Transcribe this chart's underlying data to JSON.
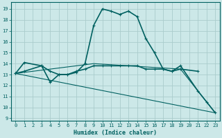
{
  "xlabel": "Humidex (Indice chaleur)",
  "background_color": "#cce8e8",
  "grid_color": "#aacccc",
  "line_color": "#006060",
  "xlim": [
    -0.5,
    23.5
  ],
  "ylim": [
    8.8,
    19.6
  ],
  "yticks": [
    9,
    10,
    11,
    12,
    13,
    14,
    15,
    16,
    17,
    18,
    19
  ],
  "xticks": [
    0,
    1,
    2,
    3,
    4,
    5,
    6,
    7,
    8,
    9,
    10,
    11,
    12,
    13,
    14,
    15,
    16,
    17,
    18,
    19,
    20,
    21,
    22,
    23
  ],
  "series": [
    {
      "x": [
        0,
        1,
        3,
        4,
        5,
        6,
        7,
        8,
        9,
        10,
        11,
        12,
        13,
        14,
        15,
        16,
        17,
        18,
        19,
        21,
        22,
        23
      ],
      "y": [
        13.1,
        14.1,
        13.8,
        12.3,
        13.0,
        13.0,
        13.2,
        14.0,
        17.5,
        19.0,
        18.8,
        18.5,
        18.8,
        18.3,
        16.3,
        15.0,
        13.5,
        13.3,
        13.8,
        11.5,
        10.5,
        9.5
      ]
    },
    {
      "x": [
        0,
        1,
        3,
        4,
        5,
        6,
        7,
        8,
        9,
        10,
        11,
        12,
        13,
        14,
        15,
        16,
        17,
        18,
        19,
        21
      ],
      "y": [
        13.1,
        13.3,
        13.8,
        13.3,
        13.0,
        13.0,
        13.3,
        13.5,
        13.8,
        13.8,
        13.8,
        13.8,
        13.8,
        13.8,
        13.5,
        13.5,
        13.5,
        13.3,
        13.5,
        13.3
      ]
    },
    {
      "x": [
        0,
        23
      ],
      "y": [
        13.1,
        9.5
      ]
    },
    {
      "x": [
        0,
        9,
        19,
        23
      ],
      "y": [
        13.1,
        14.0,
        13.5,
        9.5
      ]
    }
  ]
}
